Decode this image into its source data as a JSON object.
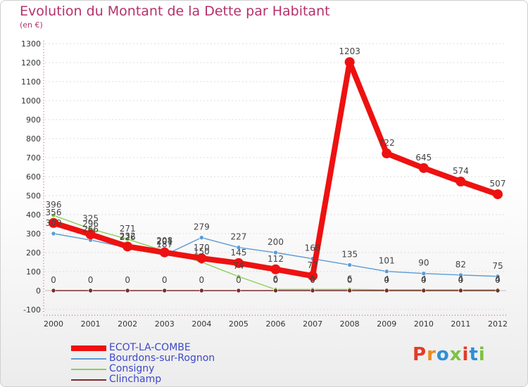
{
  "header": {
    "title": "Evolution du Montant de la Dette par Habitant",
    "subtitle": "(en €)"
  },
  "brand": {
    "text": "Proxiti",
    "colors": [
      "#e23b2b",
      "#f08a1c",
      "#2e8fd4",
      "#7cc242",
      "#e23b2b",
      "#2e8fd4",
      "#7cc242"
    ]
  },
  "chart_data": {
    "type": "line",
    "title": "Evolution du Montant de la Dette par Habitant",
    "subtitle": "(en €)",
    "x": [
      "2000",
      "2001",
      "2002",
      "2003",
      "2004",
      "2005",
      "2006",
      "2007",
      "2008",
      "2009",
      "2010",
      "2011",
      "2012"
    ],
    "ylim": [
      -100,
      1300
    ],
    "yticks": [
      -100,
      0,
      100,
      200,
      300,
      400,
      500,
      600,
      700,
      800,
      900,
      1000,
      1100,
      1200,
      1300
    ],
    "grid": true,
    "legend_position": "bottom-left",
    "series": [
      {
        "name": "ECOT-LA-COMBE",
        "color": "#ee1111",
        "values": [
          356,
          296,
          232,
          201,
          170,
          145,
          112,
          77,
          1203,
          722,
          645,
          574,
          507
        ],
        "labels": [
          "356",
          "296",
          "232",
          "201",
          "170",
          "145",
          "112",
          "77",
          "1203",
          "722",
          "645",
          "574",
          "507"
        ]
      },
      {
        "name": "Bourdons-sur-Rognon",
        "color": "#5b9bd5",
        "values": [
          300,
          266,
          226,
          187,
          279,
          227,
          200,
          168,
          135,
          101,
          90,
          82,
          75
        ],
        "labels": [
          "300",
          "266",
          "226",
          "187",
          "279",
          "227",
          "200",
          "168",
          "135",
          "101",
          "90",
          "82",
          "75"
        ]
      },
      {
        "name": "Consigny",
        "color": "#88d055",
        "values": [
          396,
          325,
          271,
          208,
          150,
          74,
          6,
          6,
          6,
          4,
          4,
          4,
          4
        ],
        "labels": [
          "396",
          "325",
          "271",
          "208",
          "150",
          "74",
          "6",
          "6",
          "6",
          "4",
          "4",
          "4",
          "4"
        ]
      },
      {
        "name": "Clinchamp",
        "color": "#7b2b2b",
        "values": [
          0,
          0,
          0,
          0,
          0,
          0,
          0,
          0,
          0,
          0,
          0,
          0,
          0
        ],
        "labels": [
          "0",
          "0",
          "0",
          "0",
          "0",
          "0",
          "0",
          "0",
          "0",
          "0",
          "0",
          "0",
          "0"
        ]
      }
    ]
  }
}
